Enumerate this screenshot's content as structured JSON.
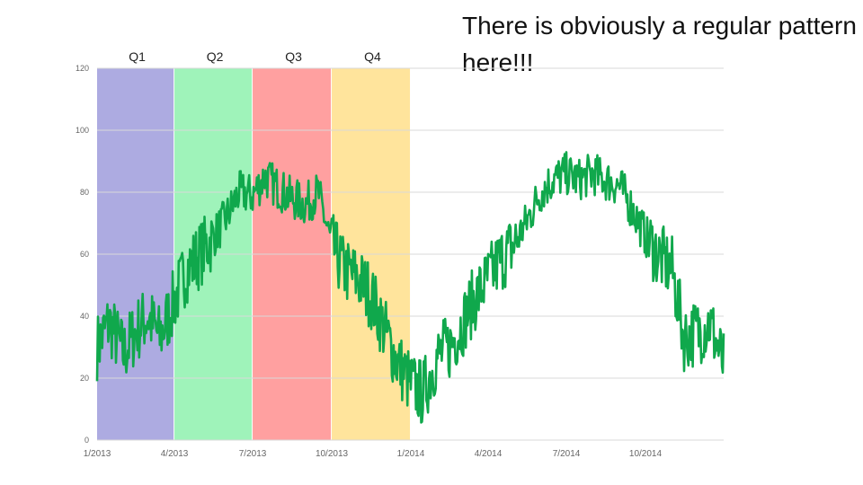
{
  "headline": "There is obviously a regular pattern here!!!",
  "colors": {
    "line": "#10a84c",
    "grid": "#d9d9d9",
    "axis_text": "#666666",
    "q1": "#8d8ad6",
    "q2": "#7aeea0",
    "q3": "#ff7b7b",
    "q4": "#ffd976"
  },
  "chart_data": {
    "type": "line",
    "title": "",
    "xlabel": "",
    "ylabel": "",
    "ylim": [
      0,
      120
    ],
    "xlim": [
      "2013-01-01",
      "2014-12-31"
    ],
    "grid": true,
    "y_ticks": [
      "0",
      "20",
      "40",
      "60",
      "80",
      "100",
      "120"
    ],
    "x_ticks": [
      "1/2013",
      "4/2013",
      "7/2013",
      "10/2013",
      "1/2014",
      "4/2014",
      "7/2014",
      "10/2014"
    ],
    "quarter_bands": [
      {
        "label": "Q1",
        "start": "2013-01-01",
        "end": "2013-03-31"
      },
      {
        "label": "Q2",
        "start": "2013-04-01",
        "end": "2013-06-30"
      },
      {
        "label": "Q3",
        "start": "2013-07-01",
        "end": "2013-09-30"
      },
      {
        "label": "Q4",
        "start": "2013-10-01",
        "end": "2013-12-31"
      }
    ],
    "series": [
      {
        "x": [
          "2013-01-01",
          "2013-01-15",
          "2013-02-01",
          "2013-02-15",
          "2013-03-01",
          "2013-03-15",
          "2013-04-01",
          "2013-04-15",
          "2013-05-01",
          "2013-05-15",
          "2013-06-01",
          "2013-06-15",
          "2013-07-01",
          "2013-07-15",
          "2013-08-01",
          "2013-08-15",
          "2013-09-01",
          "2013-09-15",
          "2013-10-01",
          "2013-10-15",
          "2013-11-01",
          "2013-11-15",
          "2013-12-01",
          "2013-12-15",
          "2014-01-01",
          "2014-01-15",
          "2014-02-01",
          "2014-02-15",
          "2014-03-01",
          "2014-03-15",
          "2014-04-01",
          "2014-04-15",
          "2014-05-01",
          "2014-05-15",
          "2014-06-01",
          "2014-06-15",
          "2014-07-01",
          "2014-07-15",
          "2014-08-01",
          "2014-08-15",
          "2014-09-01",
          "2014-09-15",
          "2014-10-01",
          "2014-10-15",
          "2014-11-01",
          "2014-11-15",
          "2014-12-01",
          "2014-12-15",
          "2014-12-31"
        ],
        "y": [
          30,
          38,
          28,
          35,
          40,
          33,
          45,
          55,
          60,
          65,
          72,
          80,
          79,
          85,
          81,
          78,
          76,
          80,
          63,
          55,
          52,
          47,
          36,
          26,
          18,
          15,
          27,
          30,
          37,
          45,
          52,
          58,
          63,
          70,
          80,
          84,
          86,
          84,
          86,
          84,
          82,
          75,
          66,
          60,
          55,
          33,
          35,
          38,
          24
        ]
      }
    ]
  }
}
